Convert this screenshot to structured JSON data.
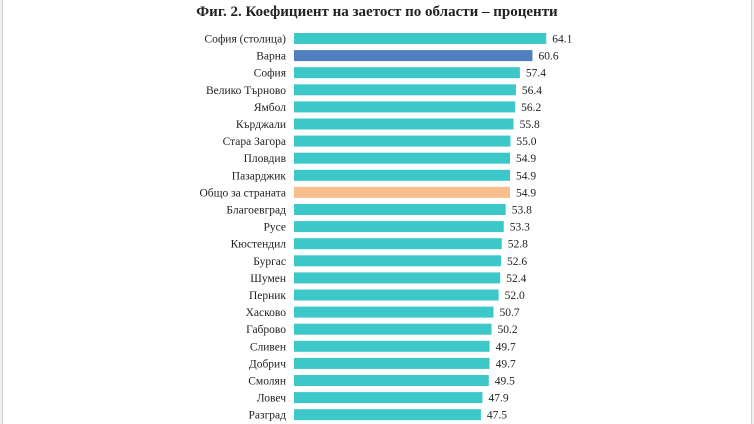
{
  "chart_data": {
    "type": "bar",
    "orientation": "horizontal",
    "title": "Фиг. 2. Коефициент на заетост по области – проценти",
    "categories": [
      "София (столица)",
      "Варна",
      "София",
      "Велико Търново",
      "Ямбол",
      "Кърджали",
      "Стара Загора",
      "Пловдив",
      "Пазарджик",
      "Общо за страната",
      "Благоевград",
      "Русе",
      "Кюстендил",
      "Бургас",
      "Шумен",
      "Перник",
      "Хасково",
      "Габрово",
      "Сливен",
      "Добрич",
      "Смолян",
      "Ловеч",
      "Разград"
    ],
    "values": [
      64.1,
      60.6,
      57.4,
      56.4,
      56.2,
      55.8,
      55.0,
      54.9,
      54.9,
      54.9,
      53.8,
      53.3,
      52.8,
      52.6,
      52.4,
      52.0,
      50.7,
      50.2,
      49.7,
      49.7,
      49.5,
      47.9,
      47.5
    ],
    "value_labels": [
      "64.1",
      "60.6",
      "57.4",
      "56.4",
      "56.2",
      "55.8",
      "55.0",
      "54.9",
      "54.9",
      "54.9",
      "53.8",
      "53.3",
      "52.8",
      "52.6",
      "52.4",
      "52.0",
      "50.7",
      "50.2",
      "49.7",
      "49.7",
      "49.5",
      "47.9",
      "47.5"
    ],
    "colors": {
      "default": "#3cc8c8",
      "highlight": "#4f7fbf",
      "total": "#f8be8e"
    },
    "highlight_category": "Варна",
    "total_category": "Общо за страната",
    "grid": false,
    "axis_visible": false
  }
}
